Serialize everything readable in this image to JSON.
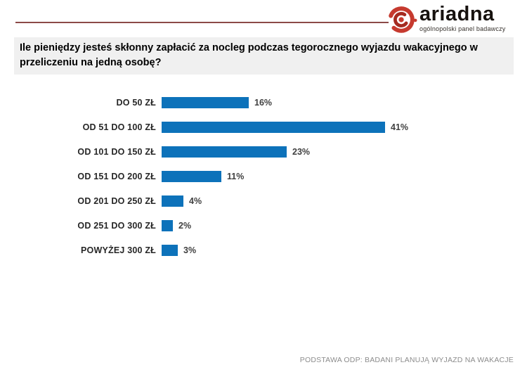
{
  "logo": {
    "brand": "ariadna",
    "tagline": "ogólnopolski panel badawczy",
    "accent_red": "#c63a2f",
    "accent_dark_red": "#a52a20"
  },
  "rule_color": "#6e2a28",
  "question_title": "Ile pieniędzy jesteś skłonny zapłacić za nocleg podczas tegorocznego wyjazdu wakacyjnego w przeliczeniu na jedną osobę?",
  "footer_note": "PODSTAWA ODP: BADANI PLANUJĄ WYJAZD NA WAKACJE",
  "chart_data": {
    "type": "bar",
    "orientation": "horizontal",
    "title": "Ile pieniędzy jesteś skłonny zapłacić za nocleg podczas tegorocznego wyjazdu wakacyjnego w przeliczeniu na jedną osobę?",
    "categories": [
      "DO 50 ZŁ",
      "OD 51 DO 100 ZŁ",
      "OD 101 DO 150 ZŁ",
      "OD 151 DO 200 ZŁ",
      "OD 201 DO 250 ZŁ",
      "OD 251 DO 300 ZŁ",
      "POWYŻEJ 300 ZŁ"
    ],
    "values": [
      16,
      41,
      23,
      11,
      4,
      2,
      3
    ],
    "value_suffix": "%",
    "bar_color": "#0d72ba",
    "xlabel": "",
    "ylabel": "",
    "xlim": [
      0,
      41
    ],
    "grid": false,
    "legend": false,
    "data_labels": "outside-end"
  }
}
